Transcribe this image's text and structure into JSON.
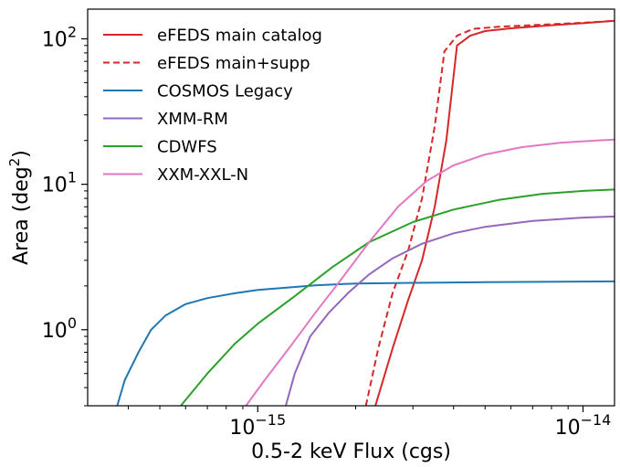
{
  "chart_data": {
    "type": "line",
    "xscale": "log",
    "yscale": "log",
    "xlabel": "0.5-2 keV Flux (cgs)",
    "ylabel_main": "Area (deg",
    "ylabel_sup": "2",
    "ylabel_tail": ")",
    "xlim": [
      3e-16,
      1.25e-14
    ],
    "ylim": [
      0.3,
      160
    ],
    "x_ticks": [
      {
        "value": 1e-15,
        "base": "10",
        "exp": "−15"
      },
      {
        "value": 1e-14,
        "base": "10",
        "exp": "−14"
      }
    ],
    "y_ticks": [
      {
        "value": 1,
        "base": "10",
        "exp": "0"
      },
      {
        "value": 10,
        "base": "10",
        "exp": "1"
      },
      {
        "value": 100,
        "base": "10",
        "exp": "2"
      }
    ],
    "legend_position": "top-left",
    "series": [
      {
        "name": "eFEDS main catalog",
        "color": "#d62728",
        "dash": "solid",
        "points": [
          [
            2.3e-15,
            0.3
          ],
          [
            2.6e-15,
            0.75
          ],
          [
            2.9e-15,
            1.6
          ],
          [
            3.2e-15,
            3.0
          ],
          [
            3.5e-15,
            7.0
          ],
          [
            3.8e-15,
            20
          ],
          [
            4.1e-15,
            90
          ],
          [
            4.5e-15,
            105
          ],
          [
            5e-15,
            113
          ],
          [
            6e-15,
            118
          ],
          [
            8e-15,
            124
          ],
          [
            1e-14,
            128
          ],
          [
            1.25e-14,
            133
          ]
        ]
      },
      {
        "name": "eFEDS main+supp",
        "color": "#d62728",
        "dash": "dashed",
        "points": [
          [
            2.15e-15,
            0.3
          ],
          [
            2.35e-15,
            0.75
          ],
          [
            2.6e-15,
            1.8
          ],
          [
            2.9e-15,
            3.5
          ],
          [
            3.2e-15,
            8.0
          ],
          [
            3.5e-15,
            25
          ],
          [
            3.75e-15,
            82
          ],
          [
            4.1e-15,
            105
          ],
          [
            4.6e-15,
            117
          ],
          [
            5.5e-15,
            121
          ],
          [
            8e-15,
            126
          ],
          [
            1e-14,
            129
          ],
          [
            1.25e-14,
            133
          ]
        ]
      },
      {
        "name": "COSMOS Legacy",
        "color": "#1f77b4",
        "dash": "solid",
        "points": [
          [
            3.7e-16,
            0.3
          ],
          [
            3.9e-16,
            0.45
          ],
          [
            4.3e-16,
            0.7
          ],
          [
            4.7e-16,
            1.0
          ],
          [
            5.2e-16,
            1.25
          ],
          [
            6e-16,
            1.5
          ],
          [
            7e-16,
            1.65
          ],
          [
            8.5e-16,
            1.78
          ],
          [
            1e-15,
            1.88
          ],
          [
            1.5e-15,
            2.02
          ],
          [
            2e-15,
            2.08
          ],
          [
            3e-15,
            2.1
          ],
          [
            5e-15,
            2.12
          ],
          [
            1.25e-14,
            2.15
          ]
        ]
      },
      {
        "name": "XMM-RM",
        "color": "#9467bd",
        "dash": "solid",
        "points": [
          [
            1.22e-15,
            0.3
          ],
          [
            1.3e-15,
            0.5
          ],
          [
            1.45e-15,
            0.9
          ],
          [
            1.65e-15,
            1.3
          ],
          [
            1.9e-15,
            1.8
          ],
          [
            2.2e-15,
            2.4
          ],
          [
            2.6e-15,
            3.1
          ],
          [
            3.2e-15,
            3.9
          ],
          [
            4e-15,
            4.6
          ],
          [
            5e-15,
            5.1
          ],
          [
            7e-15,
            5.6
          ],
          [
            1e-14,
            5.9
          ],
          [
            1.25e-14,
            6.0
          ]
        ]
      },
      {
        "name": "CDWFS",
        "color": "#2ca02c",
        "dash": "solid",
        "points": [
          [
            5.8e-16,
            0.3
          ],
          [
            7e-16,
            0.5
          ],
          [
            8.5e-16,
            0.8
          ],
          [
            1e-15,
            1.1
          ],
          [
            1.3e-15,
            1.7
          ],
          [
            1.7e-15,
            2.7
          ],
          [
            2.2e-15,
            4.0
          ],
          [
            3e-15,
            5.5
          ],
          [
            4e-15,
            6.7
          ],
          [
            5.5e-15,
            7.8
          ],
          [
            7.5e-15,
            8.6
          ],
          [
            1e-14,
            9.0
          ],
          [
            1.25e-14,
            9.2
          ]
        ]
      },
      {
        "name": "XXM-XXL-N",
        "color": "#e377c2",
        "dash": "solid",
        "points": [
          [
            9.2e-16,
            0.3
          ],
          [
            1.05e-15,
            0.45
          ],
          [
            1.25e-15,
            0.75
          ],
          [
            1.5e-15,
            1.3
          ],
          [
            1.8e-15,
            2.2
          ],
          [
            2.2e-15,
            4.0
          ],
          [
            2.7e-15,
            7.0
          ],
          [
            3.3e-15,
            10.5
          ],
          [
            4e-15,
            13.5
          ],
          [
            5e-15,
            16
          ],
          [
            6.5e-15,
            18
          ],
          [
            8.5e-15,
            19.3
          ],
          [
            1.1e-14,
            20.0
          ],
          [
            1.25e-14,
            20.3
          ]
        ]
      }
    ]
  }
}
